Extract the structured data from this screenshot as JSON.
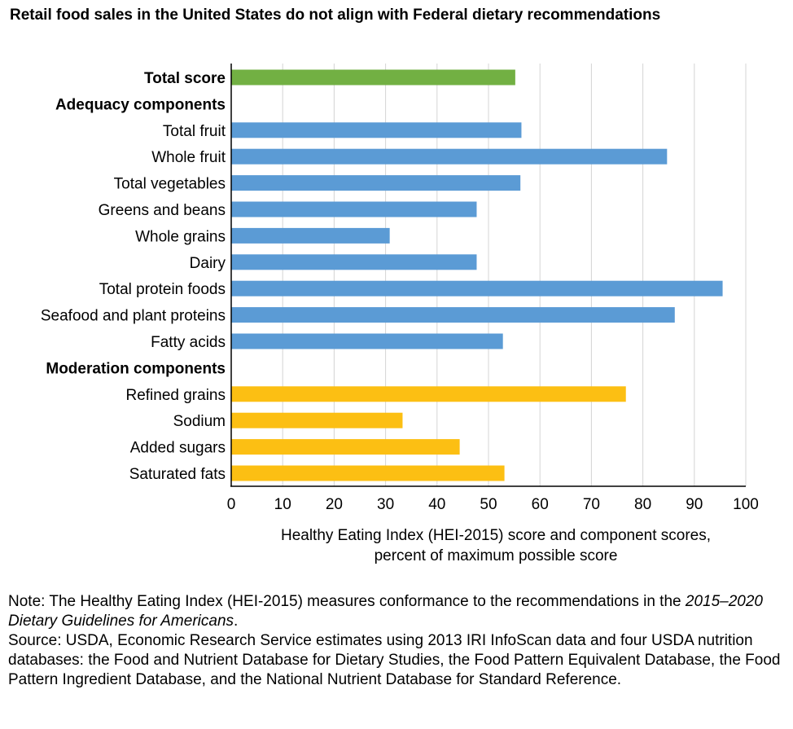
{
  "chart_data": {
    "type": "bar",
    "title": "Retail food sales in the United States do not align with Federal dietary recommendations",
    "xlabel": [
      "Healthy Eating Index (HEI-2015) score and component scores,",
      "percent of maximum possible score"
    ],
    "xlim": [
      0,
      100
    ],
    "xticks": [
      "0",
      "10",
      "20",
      "30",
      "40",
      "50",
      "60",
      "70",
      "80",
      "90",
      "100"
    ],
    "orientation": "horizontal",
    "grid": "vertical",
    "colors": {
      "total": "#72b043",
      "adequacy": "#5b9bd5",
      "moderation": "#fcbf13"
    },
    "categories": [
      {
        "label": "Total score",
        "value": 55.2,
        "group": "total",
        "bold": true
      },
      {
        "label": "Adequacy components",
        "value": null,
        "group": "header",
        "bold": true
      },
      {
        "label": "Total fruit",
        "value": 56.4,
        "group": "adequacy"
      },
      {
        "label": "Whole fruit",
        "value": 84.7,
        "group": "adequacy"
      },
      {
        "label": "Total vegetables",
        "value": 56.2,
        "group": "adequacy"
      },
      {
        "label": "Greens and beans",
        "value": 47.7,
        "group": "adequacy"
      },
      {
        "label": "Whole grains",
        "value": 30.8,
        "group": "adequacy"
      },
      {
        "label": "Dairy",
        "value": 47.7,
        "group": "adequacy"
      },
      {
        "label": "Total protein foods",
        "value": 95.5,
        "group": "adequacy"
      },
      {
        "label": "Seafood and plant proteins",
        "value": 86.2,
        "group": "adequacy"
      },
      {
        "label": "Fatty acids",
        "value": 52.8,
        "group": "adequacy"
      },
      {
        "label": "Moderation components",
        "value": null,
        "group": "header",
        "bold": true
      },
      {
        "label": "Refined grains",
        "value": 76.7,
        "group": "moderation"
      },
      {
        "label": "Sodium",
        "value": 33.3,
        "group": "moderation"
      },
      {
        "label": "Added sugars",
        "value": 44.4,
        "group": "moderation"
      },
      {
        "label": "Saturated fats",
        "value": 53.1,
        "group": "moderation"
      }
    ]
  },
  "notes": {
    "note_prefix": "Note: The Healthy Eating Index (HEI-2015) measures conformance to the recommendations in the ",
    "note_italic": "2015–2020 Dietary Guidelines for Americans",
    "note_suffix": ".",
    "source": "Source: USDA, Economic Research Service estimates using 2013 IRI InfoScan data and four USDA nutrition databases: the Food and Nutrient Database for Dietary Studies, the Food Pattern Equivalent Database, the Food Pattern Ingredient Database, and the National Nutrient Database for Standard Reference."
  }
}
